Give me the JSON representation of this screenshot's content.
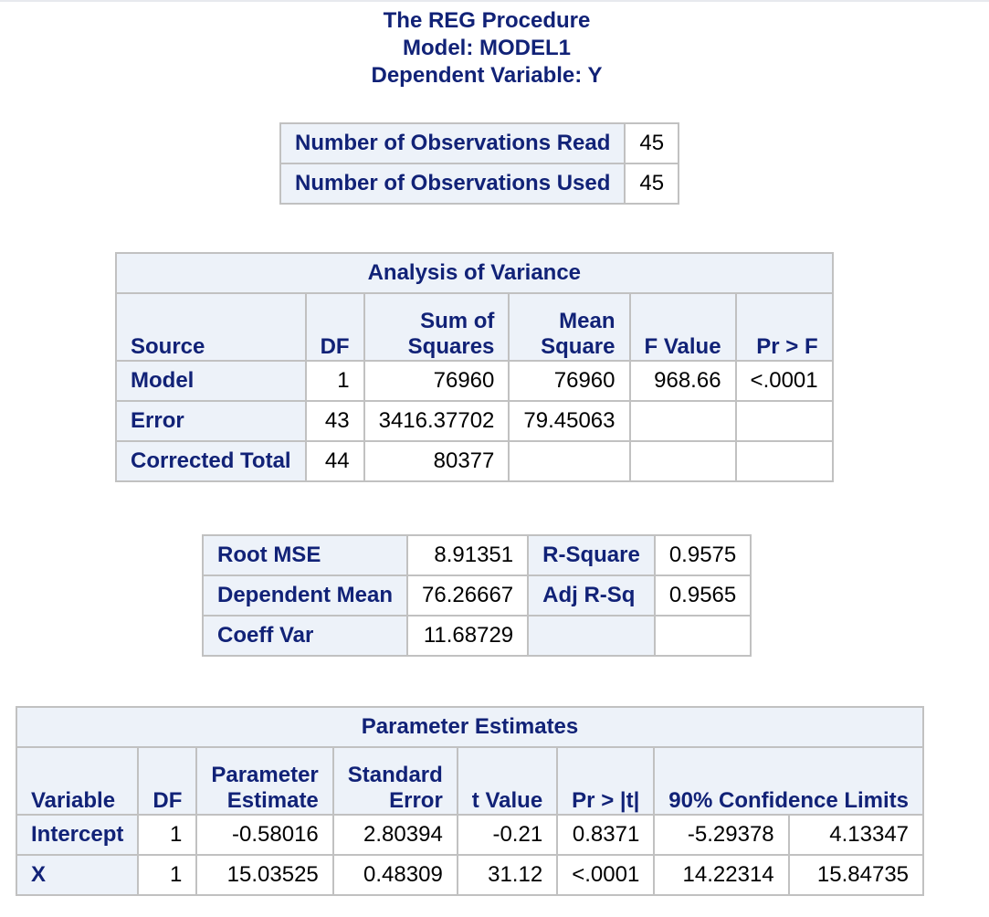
{
  "titles": {
    "line1": "The REG Procedure",
    "line2": "Model: MODEL1",
    "line3": "Dependent Variable: Y"
  },
  "observations": [
    {
      "label": "Number of Observations Read",
      "value": "45"
    },
    {
      "label": "Number of Observations Used",
      "value": "45"
    }
  ],
  "anova": {
    "caption": "Analysis of Variance",
    "headers": {
      "source": "Source",
      "df": "DF",
      "ss_line1": "Sum of",
      "ss_line2": "Squares",
      "ms_line1": "Mean",
      "ms_line2": "Square",
      "f": "F Value",
      "p": "Pr > F"
    },
    "rows": [
      {
        "source": "Model",
        "df": "1",
        "ss": "76960",
        "ms": "76960",
        "f": "968.66",
        "p": "<.0001"
      },
      {
        "source": "Error",
        "df": "43",
        "ss": "3416.37702",
        "ms": "79.45063",
        "f": "",
        "p": ""
      },
      {
        "source": "Corrected Total",
        "df": "44",
        "ss": "80377",
        "ms": "",
        "f": "",
        "p": ""
      }
    ]
  },
  "fit": {
    "rows": [
      {
        "label1": "Root MSE",
        "value1": "8.91351",
        "label2": "R-Square",
        "value2": "0.9575"
      },
      {
        "label1": "Dependent Mean",
        "value1": "76.26667",
        "label2": "Adj R-Sq",
        "value2": "0.9565"
      },
      {
        "label1": "Coeff Var",
        "value1": "11.68729",
        "label2": "",
        "value2": ""
      }
    ]
  },
  "params": {
    "caption": "Parameter Estimates",
    "headers": {
      "variable": "Variable",
      "df": "DF",
      "est_line1": "Parameter",
      "est_line2": "Estimate",
      "se_line1": "Standard",
      "se_line2": "Error",
      "t": "t Value",
      "p": "Pr > |t|",
      "cl": "90% Confidence Limits"
    },
    "rows": [
      {
        "variable": "Intercept",
        "df": "1",
        "est": "-0.58016",
        "se": "2.80394",
        "t": "-0.21",
        "p": "0.8371",
        "lcl": "-5.29378",
        "ucl": "4.13347"
      },
      {
        "variable": "X",
        "df": "1",
        "est": "15.03525",
        "se": "0.48309",
        "t": "31.12",
        "p": "<.0001",
        "lcl": "14.22314",
        "ucl": "15.84735"
      }
    ]
  },
  "colors": {
    "header_text": "#112277",
    "header_bg": "#edf2f9",
    "border": "#c1c1c1"
  }
}
